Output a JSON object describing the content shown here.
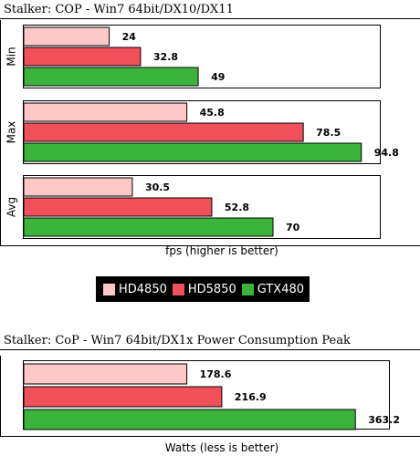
{
  "colors": {
    "hd4850": "#ffc8c8",
    "hd5850": "#f0505a",
    "gtx480": "#3cb43c",
    "border": "#000000"
  },
  "legend": [
    {
      "name": "HD4850",
      "color": "#ffc8c8"
    },
    {
      "name": "HD5850",
      "color": "#f0505a"
    },
    {
      "name": "GTX480",
      "color": "#3cb43c"
    }
  ],
  "chart_data": [
    {
      "type": "bar",
      "orientation": "horizontal",
      "title": "Stalker: COP - Win7 64bit/DX10/DX11",
      "xlabel": "fps (higher is better)",
      "categories": [
        "Min",
        "Max",
        "Avg"
      ],
      "series": [
        {
          "name": "HD4850",
          "values": [
            24,
            45.8,
            30.5
          ]
        },
        {
          "name": "HD5850",
          "values": [
            32.8,
            78.5,
            52.8
          ]
        },
        {
          "name": "GTX480",
          "values": [
            49,
            94.8,
            70
          ]
        }
      ],
      "value_labels": [
        [
          "24",
          "32.8",
          "49"
        ],
        [
          "45.8",
          "78.5",
          "94.8"
        ],
        [
          "30.5",
          "52.8",
          "70"
        ]
      ],
      "xlim": [
        0,
        100
      ],
      "legend_position": "bottom",
      "grid": false
    },
    {
      "type": "bar",
      "orientation": "horizontal",
      "title": "Stalker: CoP - Win7 64bit/DX1x Power Consumption Peak",
      "xlabel": "Watts (less is better)",
      "categories": [
        ""
      ],
      "series": [
        {
          "name": "HD4850",
          "values": [
            178.6
          ]
        },
        {
          "name": "HD5850",
          "values": [
            216.9
          ]
        },
        {
          "name": "GTX480",
          "values": [
            363.2
          ]
        }
      ],
      "value_labels": [
        [
          "178.6",
          "216.9",
          "363.2"
        ]
      ],
      "xlim": [
        0,
        400
      ],
      "grid": false
    }
  ]
}
